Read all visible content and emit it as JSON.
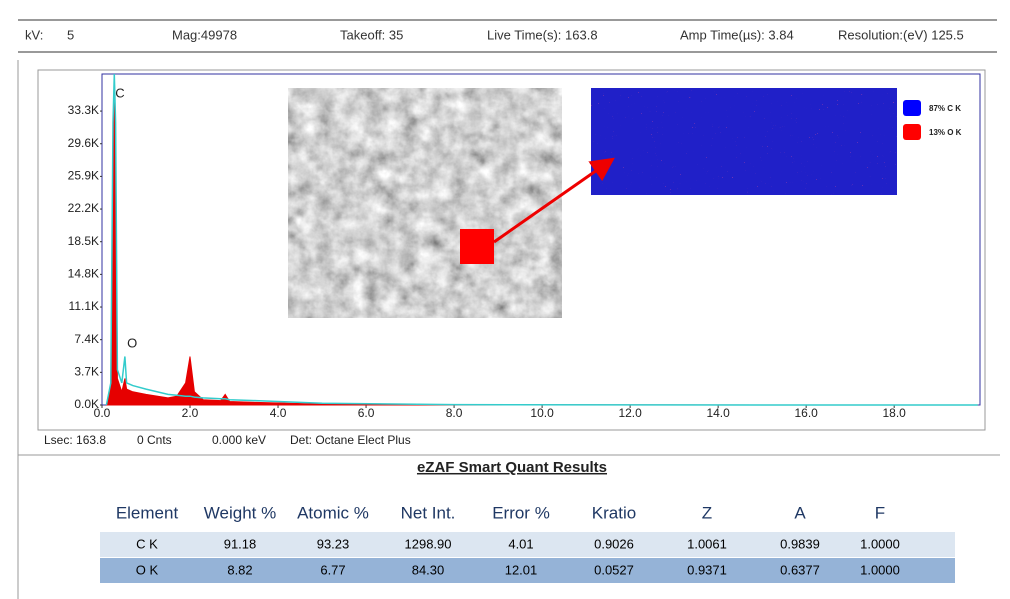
{
  "header": {
    "kv_label": "kV:",
    "kv": "5",
    "mag": "Mag:49978",
    "takeoff": "Takeoff: 35",
    "live_time": "Live Time(s): 163.8",
    "amp_time": "Amp Time(µs): 3.84",
    "resolution": "Resolution:(eV) 125.5"
  },
  "chart_data": {
    "type": "area",
    "x": [
      0.1,
      0.2,
      0.25,
      0.28,
      0.31,
      0.35,
      0.45,
      0.52,
      0.56,
      0.7,
      1.0,
      1.5,
      1.7,
      1.9,
      2.0,
      2.1,
      2.3,
      2.7,
      2.8,
      2.9,
      3.5,
      5.0,
      8.0,
      12.0,
      19.9
    ],
    "series": [
      {
        "color": "#e60000",
        "filled": true,
        "values": [
          0,
          2000,
          30000,
          37500,
          30000,
          3000,
          1500,
          3000,
          1800,
          1500,
          1200,
          800,
          1000,
          2500,
          5500,
          1500,
          600,
          500,
          1200,
          400,
          300,
          100,
          30,
          10,
          0
        ]
      },
      {
        "color": "#33cccc",
        "filled": false,
        "values": [
          0,
          2500,
          32000,
          37500,
          32000,
          4000,
          2500,
          5500,
          2500,
          2200,
          1800,
          1200,
          1100,
          1000,
          1000,
          900,
          800,
          700,
          700,
          600,
          500,
          200,
          50,
          10,
          0
        ]
      }
    ],
    "annotations": [
      {
        "text": "C",
        "x": 0.3,
        "y": 35200
      },
      {
        "text": "O",
        "x": 0.57,
        "y": 6900
      }
    ],
    "xlim": [
      0,
      19.95
    ],
    "ylim": [
      0,
      37500
    ],
    "xticks": [
      {
        "value": 0,
        "label": "0.0"
      },
      {
        "value": 2,
        "label": "2.0"
      },
      {
        "value": 4,
        "label": "4.0"
      },
      {
        "value": 6,
        "label": "6.0"
      },
      {
        "value": 8,
        "label": "8.0"
      },
      {
        "value": 10,
        "label": "10.0"
      },
      {
        "value": 12,
        "label": "12.0"
      },
      {
        "value": 14,
        "label": "14.0"
      },
      {
        "value": 16,
        "label": "16.0"
      },
      {
        "value": 18,
        "label": "18.0"
      }
    ],
    "yticks": [
      {
        "value": 0,
        "label": "0.0K"
      },
      {
        "value": 3700,
        "label": "3.7K"
      },
      {
        "value": 7400,
        "label": "7.4K"
      },
      {
        "value": 11100,
        "label": "11.1K"
      },
      {
        "value": 14800,
        "label": "14.8K"
      },
      {
        "value": 18500,
        "label": "18.5K"
      },
      {
        "value": 22200,
        "label": "22.2K"
      },
      {
        "value": 25900,
        "label": "25.9K"
      },
      {
        "value": 29600,
        "label": "29.6K"
      },
      {
        "value": 33300,
        "label": "33.3K"
      }
    ]
  },
  "status": [
    "Lsec: 163.8",
    "0 Cnts",
    "0.000 keV",
    "Det: Octane Elect Plus"
  ],
  "map_legend": [
    {
      "label": "87% C K",
      "color": "#0000ff"
    },
    {
      "label": "13% O K",
      "color": "#ff0000"
    }
  ],
  "table": {
    "title": "eZAF Smart Quant Results",
    "columns": [
      "Element",
      "Weight %",
      "Atomic %",
      "Net Int.",
      "Error %",
      "Kratio",
      "Z",
      "A",
      "F"
    ],
    "rows": [
      [
        "C K",
        "91.18",
        "93.23",
        "1298.90",
        "4.01",
        "0.9026",
        "1.0061",
        "0.9839",
        "1.0000"
      ],
      [
        "O K",
        "8.82",
        "6.77",
        "84.30",
        "12.01",
        "0.0527",
        "0.9371",
        "0.6377",
        "1.0000"
      ]
    ]
  }
}
